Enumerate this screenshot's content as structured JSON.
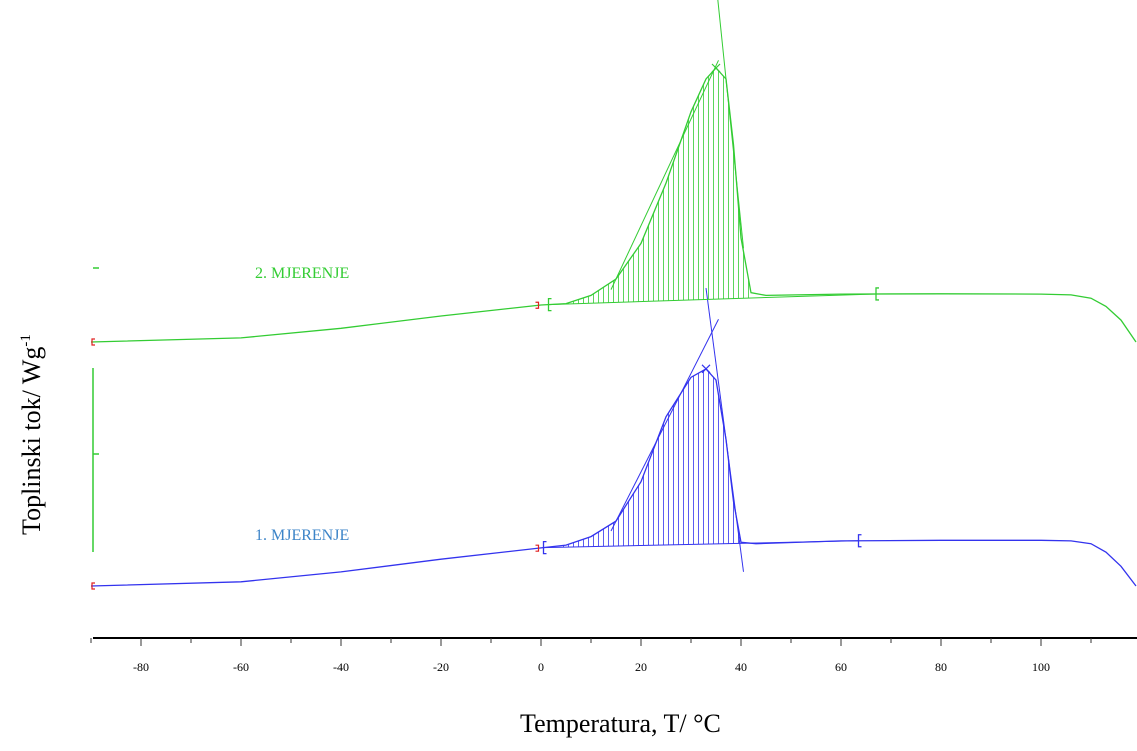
{
  "chart_data": {
    "type": "line",
    "xlabel": "Temperatura, T/ °C",
    "ylabel": "Toplinski tok/ Wg",
    "ylabel_sup": "-1",
    "xlim": [
      -90,
      119
    ],
    "x_ticks": [
      -80,
      -60,
      -40,
      -20,
      0,
      20,
      40,
      60,
      80,
      100
    ],
    "grid": false,
    "legend": "none",
    "series": [
      {
        "name": "1. MJERENJE",
        "color": "#3333ee",
        "label_color": "#3c84c8",
        "points": [
          [
            -90,
            0.0
          ],
          [
            -60,
            0.15
          ],
          [
            -40,
            0.5
          ],
          [
            -20,
            0.95
          ],
          [
            0,
            1.35
          ],
          [
            5,
            1.45
          ],
          [
            10,
            1.75
          ],
          [
            15,
            2.3
          ],
          [
            20,
            3.7
          ],
          [
            25,
            6.0
          ],
          [
            30,
            7.4
          ],
          [
            33,
            7.7
          ],
          [
            35,
            7.3
          ],
          [
            37,
            5.2
          ],
          [
            38.5,
            3.0
          ],
          [
            40,
            1.55
          ],
          [
            43,
            1.5
          ],
          [
            60,
            1.6
          ],
          [
            80,
            1.62
          ],
          [
            100,
            1.62
          ],
          [
            106,
            1.6
          ],
          [
            110,
            1.5
          ],
          [
            113,
            1.2
          ],
          [
            116,
            0.7
          ],
          [
            119,
            0.0
          ]
        ],
        "peak_x": 33,
        "integration_range": [
          0.5,
          63.5
        ]
      },
      {
        "name": "2. MJERENJE",
        "color": "#33cc33",
        "label_color": "#33cc33",
        "points": [
          [
            -90,
            0.0
          ],
          [
            -60,
            0.15
          ],
          [
            -40,
            0.5
          ],
          [
            -20,
            0.95
          ],
          [
            0,
            1.35
          ],
          [
            5,
            1.4
          ],
          [
            10,
            1.7
          ],
          [
            15,
            2.3
          ],
          [
            20,
            3.6
          ],
          [
            25,
            5.8
          ],
          [
            30,
            8.4
          ],
          [
            33,
            9.6
          ],
          [
            35,
            10.0
          ],
          [
            37,
            9.6
          ],
          [
            38.5,
            7.2
          ],
          [
            40,
            3.8
          ],
          [
            42,
            1.8
          ],
          [
            45,
            1.7
          ],
          [
            60,
            1.75
          ],
          [
            80,
            1.76
          ],
          [
            100,
            1.75
          ],
          [
            106,
            1.72
          ],
          [
            110,
            1.6
          ],
          [
            113,
            1.3
          ],
          [
            116,
            0.8
          ],
          [
            119,
            0.0
          ]
        ],
        "peak_x": 35,
        "integration_range": [
          1.5,
          67
        ]
      }
    ]
  }
}
